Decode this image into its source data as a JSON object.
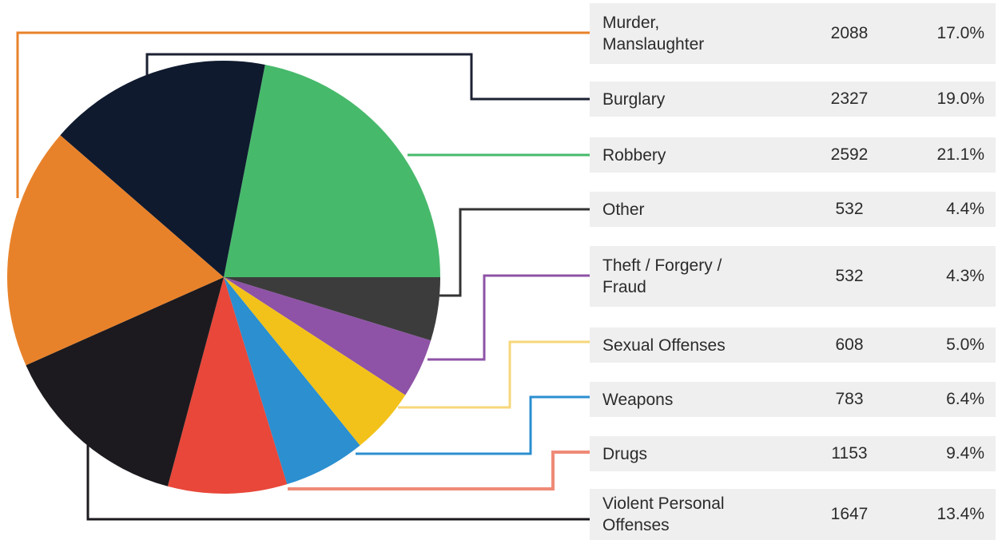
{
  "chart_data": {
    "type": "pie",
    "title": "",
    "slices": [
      {
        "label": "Murder,\nManslaughter",
        "value": 2088,
        "percent": "17.0%",
        "color": "#e8822a"
      },
      {
        "label": "Burglary",
        "value": 2327,
        "percent": "19.0%",
        "color": "#0f1a2e"
      },
      {
        "label": "Robbery",
        "value": 2592,
        "percent": "21.1%",
        "color": "#47b96b"
      },
      {
        "label": "Other",
        "value": 532,
        "percent": "4.4%",
        "color": "#3c3c3c"
      },
      {
        "label": "Theft / Forgery /\nFraud",
        "value": 532,
        "percent": "4.3%",
        "color": "#8e53a6"
      },
      {
        "label": "Sexual Offenses",
        "value": 608,
        "percent": "5.0%",
        "color": "#f2c21a"
      },
      {
        "label": "Weapons",
        "value": 783,
        "percent": "6.4%",
        "color": "#2b8fd0"
      },
      {
        "label": "Drugs",
        "value": 1153,
        "percent": "9.4%",
        "color": "#e8473a"
      },
      {
        "label": "Violent Personal\nOffenses",
        "value": 1647,
        "percent": "13.4%",
        "color": "#1c1a1e"
      }
    ],
    "leader_colors": [
      "#e8822a",
      "#1c2233",
      "#47b96b",
      "#333333",
      "#8e53a6",
      "#f7d77a",
      "#2b8fd0",
      "#ef8a77",
      "#1c1a1e"
    ],
    "legend": "right table"
  }
}
